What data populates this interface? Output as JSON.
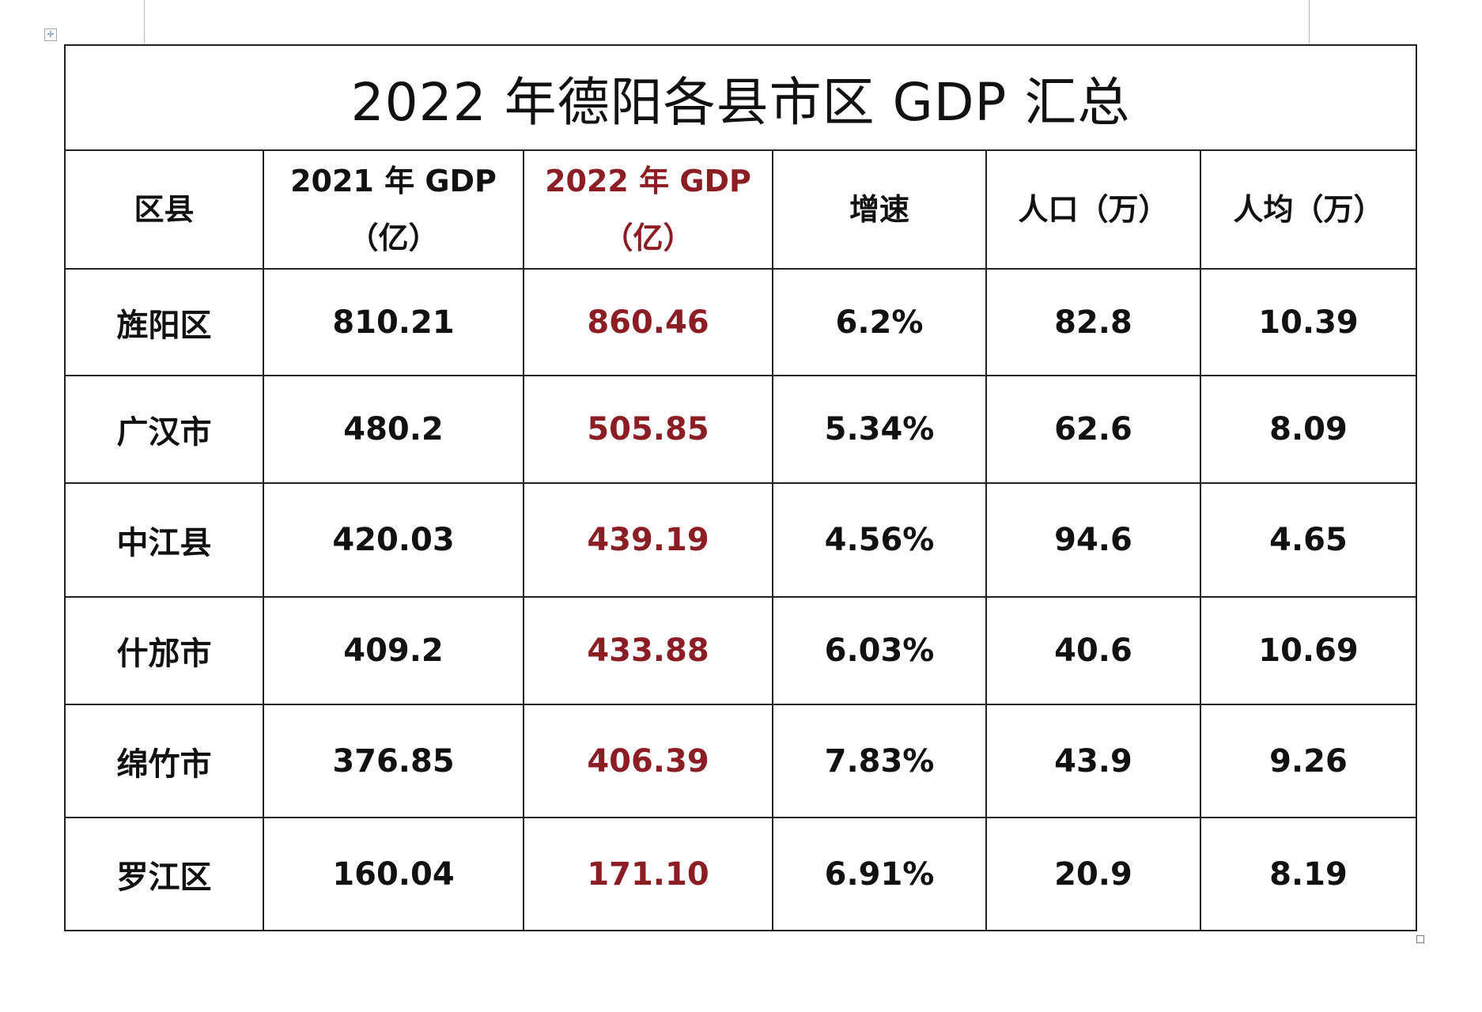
{
  "title": "2022 年德阳各县市区 GDP 汇总",
  "headers": {
    "county": "区县",
    "gdp2021_line1": "2021 年 GDP",
    "gdp2021_line2": "（亿）",
    "gdp2022_line1": "2022 年 GDP",
    "gdp2022_line2": "（亿）",
    "growth": "增速",
    "population": "人口（万）",
    "per_capita": "人均（万）"
  },
  "accent_color": "#8b1e24",
  "rows": [
    {
      "county": "旌阳区",
      "gdp2021": "810.21",
      "gdp2022": "860.46",
      "growth": "6.2%",
      "population": "82.8",
      "per_capita": "10.39"
    },
    {
      "county": "广汉市",
      "gdp2021": "480.2",
      "gdp2022": "505.85",
      "growth": "5.34%",
      "population": "62.6",
      "per_capita": "8.09"
    },
    {
      "county": "中江县",
      "gdp2021": "420.03",
      "gdp2022": "439.19",
      "growth": "4.56%",
      "population": "94.6",
      "per_capita": "4.65"
    },
    {
      "county": "什邡市",
      "gdp2021": "409.2",
      "gdp2022": "433.88",
      "growth": "6.03%",
      "population": "40.6",
      "per_capita": "10.69"
    },
    {
      "county": "绵竹市",
      "gdp2021": "376.85",
      "gdp2022": "406.39",
      "growth": "7.83%",
      "population": "43.9",
      "per_capita": "9.26"
    },
    {
      "county": "罗江区",
      "gdp2021": "160.04",
      "gdp2022": "171.10",
      "growth": "6.91%",
      "population": "20.9",
      "per_capita": "8.19"
    }
  ]
}
